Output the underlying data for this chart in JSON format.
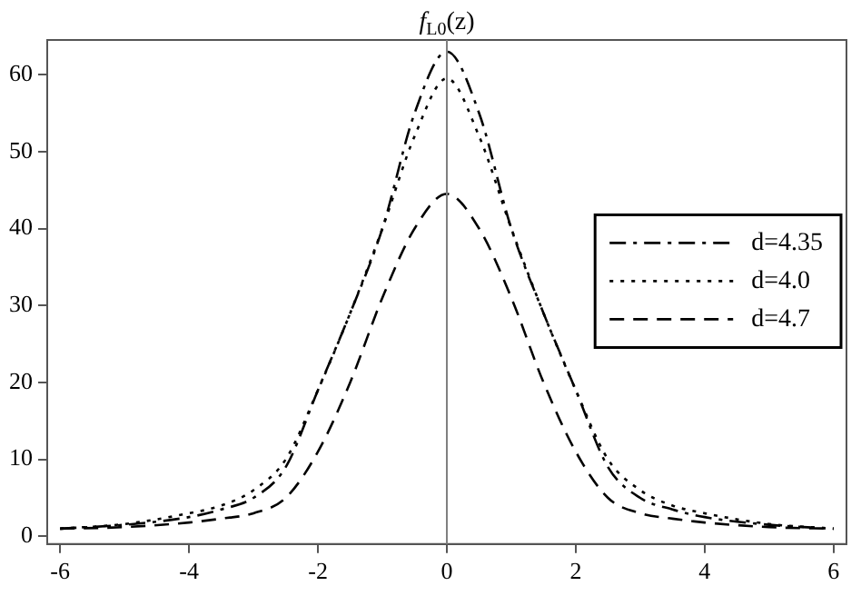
{
  "chart_data": {
    "type": "line",
    "title": "f$_{L0}$(z)",
    "x": [
      -6,
      -5,
      -4,
      -3.5,
      -3,
      -2.5,
      -2,
      -1.5,
      -1,
      -0.5,
      0,
      0.5,
      1,
      1.5,
      2,
      2.5,
      3,
      3.5,
      4,
      5,
      6
    ],
    "series": [
      {
        "name": "d=4.35",
        "color": "#000000",
        "line_style": "dashdot",
        "values": [
          1,
          1.5,
          2.5,
          3.5,
          5,
          9,
          19,
          29,
          40,
          55,
          63,
          55,
          40,
          29,
          19,
          9,
          5,
          3.5,
          2.5,
          1.5,
          1
        ]
      },
      {
        "name": "d=4.0",
        "color": "#000000",
        "line_style": "dotted",
        "values": [
          1,
          1.6,
          3,
          4,
          6,
          10,
          19,
          29,
          40,
          52,
          59.5,
          52,
          40,
          29,
          19,
          10,
          6,
          4,
          3,
          1.6,
          1
        ]
      },
      {
        "name": "d=4.7",
        "color": "#000000",
        "line_style": "dashed",
        "values": [
          1,
          1.2,
          1.8,
          2.3,
          3,
          5,
          11,
          20,
          31,
          40,
          44.5,
          40,
          31,
          20,
          11,
          5,
          3,
          2.3,
          1.8,
          1.2,
          1
        ]
      }
    ],
    "xlim": [
      -6.2,
      6.2
    ],
    "ylim": [
      -1,
      64.5
    ],
    "xticks": [
      -6,
      -4,
      -2,
      0,
      2,
      4,
      6
    ],
    "yticks": [
      0,
      10,
      20,
      30,
      40,
      50,
      60
    ],
    "ref_lines": [
      {
        "axis": "x",
        "value": 0,
        "color": "#808080"
      }
    ],
    "grid": false,
    "legend": "right",
    "marker": "none"
  }
}
